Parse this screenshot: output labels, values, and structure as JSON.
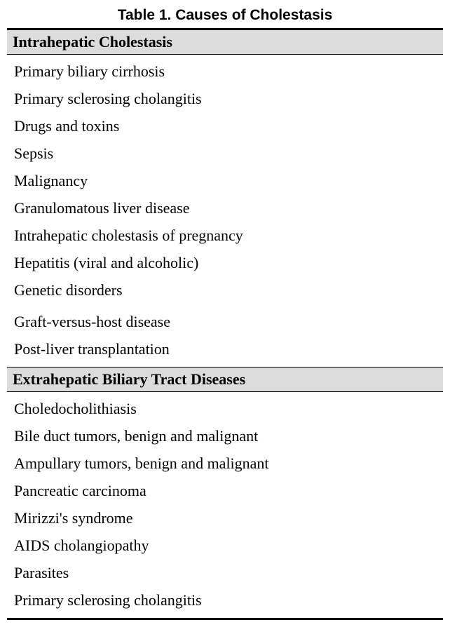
{
  "table": {
    "title": "Table 1. Causes of Cholestasis",
    "title_fontsize": 21,
    "title_font": "Arial",
    "border_color": "#000000",
    "header_bg": "#dcdcdc",
    "row_fontsize": 22,
    "sections": [
      {
        "header": "Intrahepatic Cholestasis",
        "groups": [
          [
            "Primary biliary cirrhosis",
            "Primary sclerosing cholangitis",
            "Drugs and toxins",
            "Sepsis",
            "Malignancy",
            "Granulomatous liver disease",
            "Intrahepatic cholestasis of pregnancy",
            "Hepatitis (viral and alcoholic)",
            "Genetic disorders"
          ],
          [
            "Graft-versus-host disease",
            "Post-liver transplantation"
          ]
        ]
      },
      {
        "header": "Extrahepatic Biliary Tract Diseases",
        "groups": [
          [
            "Choledocholithiasis",
            "Bile duct tumors, benign and malignant",
            "Ampullary tumors, benign and malignant",
            "Pancreatic carcinoma",
            "Mirizzi's syndrome",
            "AIDS cholangiopathy",
            "Parasites",
            "Primary sclerosing cholangitis"
          ]
        ]
      }
    ]
  }
}
